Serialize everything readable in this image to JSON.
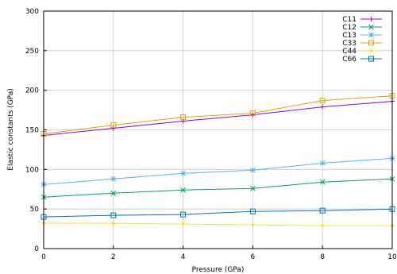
{
  "chart_data": {
    "type": "line",
    "title": "",
    "xlabel": "Pressure (GPa)",
    "ylabel": "Elastic constants (GPa)",
    "xlim": [
      0,
      10
    ],
    "ylim": [
      0,
      300
    ],
    "x_ticks": [
      0,
      2,
      4,
      6,
      8,
      10
    ],
    "y_ticks": [
      0,
      50,
      100,
      150,
      200,
      250,
      300
    ],
    "grid": true,
    "legend_position": "top-right",
    "x": [
      0,
      2,
      4,
      6,
      8,
      10
    ],
    "series": [
      {
        "name": "C11",
        "color": "#9400d3",
        "marker": "plus",
        "values": [
          143,
          152,
          161,
          169,
          179,
          186
        ]
      },
      {
        "name": "C12",
        "color": "#009e73",
        "marker": "cross",
        "values": [
          65,
          70,
          74,
          76,
          84,
          88
        ]
      },
      {
        "name": "C13",
        "color": "#56b4e9",
        "marker": "asterisk",
        "values": [
          81,
          88,
          95,
          99,
          108,
          114
        ]
      },
      {
        "name": "C33",
        "color": "#e69f00",
        "marker": "square",
        "values": [
          145,
          156,
          166,
          171,
          187,
          193
        ]
      },
      {
        "name": "C44",
        "color": "#f0e442",
        "marker": "dot",
        "values": [
          32,
          32,
          31,
          30,
          29,
          29
        ]
      },
      {
        "name": "C66",
        "color": "#0072b2",
        "marker": "square",
        "values": [
          40,
          42,
          43,
          47,
          48,
          50
        ]
      }
    ]
  }
}
